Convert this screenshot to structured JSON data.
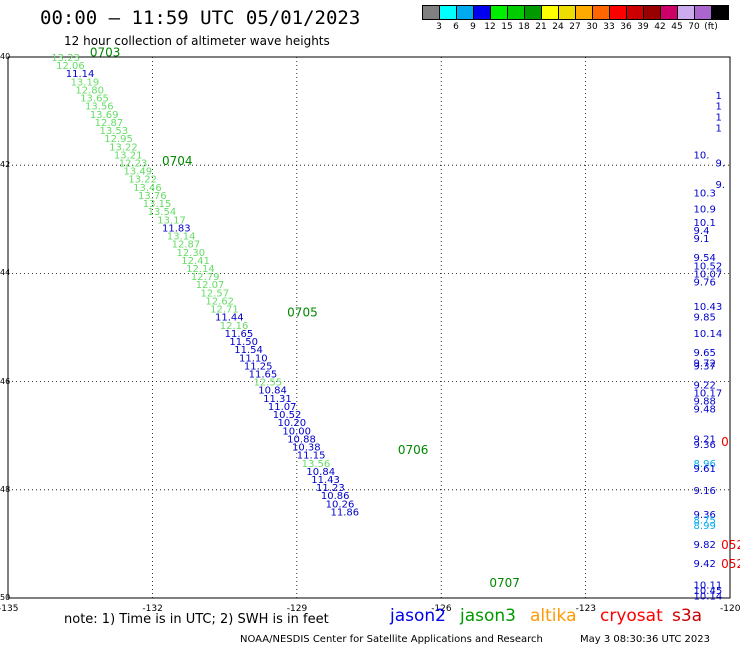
{
  "header": {
    "title": "00:00 – 11:59 UTC 05/01/2023",
    "subtitle": "12 hour collection of altimeter wave heights"
  },
  "colorbar": {
    "colors": [
      "#808080",
      "#00ffff",
      "#00aaee",
      "#0000ee",
      "#00ee00",
      "#00cc00",
      "#009900",
      "#ffff00",
      "#eedd00",
      "#ffaa00",
      "#ff6600",
      "#ff0000",
      "#cc0000",
      "#990000",
      "#cc0066",
      "#ccaaee",
      "#aa66cc",
      "#000000"
    ],
    "labels": [
      "3",
      "6",
      "9",
      "12",
      "15",
      "18",
      "21",
      "24",
      "27",
      "30",
      "33",
      "36",
      "39",
      "42",
      "45",
      "70",
      "(ft)"
    ]
  },
  "map": {
    "lon_labels": [
      "-135",
      "-132",
      "-129",
      "-126",
      "-123",
      "-120"
    ],
    "lat_labels": [
      "40",
      "42",
      "44",
      "46",
      "48",
      "50"
    ]
  },
  "chart_data": {
    "type": "scatter",
    "xlim": [
      -135,
      -120
    ],
    "ylim": [
      50,
      40
    ],
    "track_points": [
      {
        "x": -134.1,
        "y": 40.0,
        "label": "13.23",
        "sat": "jason3"
      },
      {
        "x": -134.0,
        "y": 40.15,
        "label": "12.06",
        "sat": "jason3"
      },
      {
        "x": -133.8,
        "y": 40.3,
        "label": "11.14",
        "sat": "jason2"
      },
      {
        "x": -133.7,
        "y": 40.45,
        "label": "13.19",
        "sat": "jason3"
      },
      {
        "x": -133.6,
        "y": 40.6,
        "label": "12.80",
        "sat": "jason3"
      },
      {
        "x": -133.5,
        "y": 40.75,
        "label": "13.65",
        "sat": "jason3"
      },
      {
        "x": -133.4,
        "y": 40.9,
        "label": "13.56",
        "sat": "jason3"
      },
      {
        "x": -133.3,
        "y": 41.05,
        "label": "13.69",
        "sat": "jason3"
      },
      {
        "x": -133.2,
        "y": 41.2,
        "label": "12.87",
        "sat": "jason3"
      },
      {
        "x": -133.1,
        "y": 41.35,
        "label": "13.53",
        "sat": "jason3"
      },
      {
        "x": -133.0,
        "y": 41.5,
        "label": "12.95",
        "sat": "jason3"
      },
      {
        "x": -132.9,
        "y": 41.65,
        "label": "13.22",
        "sat": "jason3"
      },
      {
        "x": -132.8,
        "y": 41.8,
        "label": "13.21",
        "sat": "jason3"
      },
      {
        "x": -132.7,
        "y": 41.95,
        "label": "12.23",
        "sat": "jason3"
      },
      {
        "x": -132.6,
        "y": 42.1,
        "label": "13.49",
        "sat": "jason3"
      },
      {
        "x": -132.5,
        "y": 42.25,
        "label": "13.22",
        "sat": "jason3"
      },
      {
        "x": -132.4,
        "y": 42.4,
        "label": "13.46",
        "sat": "jason3"
      },
      {
        "x": -132.3,
        "y": 42.55,
        "label": "13.76",
        "sat": "jason3"
      },
      {
        "x": -132.2,
        "y": 42.7,
        "label": "13.15",
        "sat": "jason3"
      },
      {
        "x": -132.1,
        "y": 42.85,
        "label": "13.54",
        "sat": "jason3"
      },
      {
        "x": -131.9,
        "y": 43.0,
        "label": "13.17",
        "sat": "jason3"
      },
      {
        "x": -131.8,
        "y": 43.15,
        "label": "11.83",
        "sat": "jason2"
      },
      {
        "x": -131.7,
        "y": 43.3,
        "label": "13.14",
        "sat": "jason3"
      },
      {
        "x": -131.6,
        "y": 43.45,
        "label": "12.87",
        "sat": "jason3"
      },
      {
        "x": -131.5,
        "y": 43.6,
        "label": "12.30",
        "sat": "jason3"
      },
      {
        "x": -131.4,
        "y": 43.75,
        "label": "12.41",
        "sat": "jason3"
      },
      {
        "x": -131.3,
        "y": 43.9,
        "label": "12.14",
        "sat": "jason3"
      },
      {
        "x": -131.2,
        "y": 44.05,
        "label": "12.79",
        "sat": "jason3"
      },
      {
        "x": -131.1,
        "y": 44.2,
        "label": "12.07",
        "sat": "jason3"
      },
      {
        "x": -131.0,
        "y": 44.35,
        "label": "12.57",
        "sat": "jason3"
      },
      {
        "x": -130.9,
        "y": 44.5,
        "label": "12.62",
        "sat": "jason3"
      },
      {
        "x": -130.8,
        "y": 44.65,
        "label": "12.71",
        "sat": "jason3"
      },
      {
        "x": -130.7,
        "y": 44.8,
        "label": "11.44",
        "sat": "jason2"
      },
      {
        "x": -130.6,
        "y": 44.95,
        "label": "12.16",
        "sat": "jason3"
      },
      {
        "x": -130.5,
        "y": 45.1,
        "label": "11.65",
        "sat": "jason2"
      },
      {
        "x": -130.4,
        "y": 45.25,
        "label": "11.50",
        "sat": "jason2"
      },
      {
        "x": -130.3,
        "y": 45.4,
        "label": "11.54",
        "sat": "jason2"
      },
      {
        "x": -130.2,
        "y": 45.55,
        "label": "11.10",
        "sat": "jason2"
      },
      {
        "x": -130.1,
        "y": 45.7,
        "label": "11.25",
        "sat": "jason2"
      },
      {
        "x": -130.0,
        "y": 45.85,
        "label": "11.65",
        "sat": "jason2"
      },
      {
        "x": -129.9,
        "y": 46.0,
        "label": "12.55",
        "sat": "jason3"
      },
      {
        "x": -129.8,
        "y": 46.15,
        "label": "10.84",
        "sat": "jason2"
      },
      {
        "x": -129.7,
        "y": 46.3,
        "label": "11.31",
        "sat": "jason2"
      },
      {
        "x": -129.6,
        "y": 46.45,
        "label": "11.07",
        "sat": "jason2"
      },
      {
        "x": -129.5,
        "y": 46.6,
        "label": "10.52",
        "sat": "jason2"
      },
      {
        "x": -129.4,
        "y": 46.75,
        "label": "10.20",
        "sat": "jason2"
      },
      {
        "x": -129.3,
        "y": 46.9,
        "label": "10.00",
        "sat": "jason2"
      },
      {
        "x": -129.2,
        "y": 47.05,
        "label": "10.88",
        "sat": "jason2"
      },
      {
        "x": -129.1,
        "y": 47.2,
        "label": "10.38",
        "sat": "jason2"
      },
      {
        "x": -129.0,
        "y": 47.35,
        "label": "11.15",
        "sat": "jason2"
      },
      {
        "x": -128.9,
        "y": 47.5,
        "label": "13.56",
        "sat": "jason3"
      },
      {
        "x": -128.8,
        "y": 47.65,
        "label": "10.84",
        "sat": "jason2"
      },
      {
        "x": -128.7,
        "y": 47.8,
        "label": "11.43",
        "sat": "jason2"
      },
      {
        "x": -128.6,
        "y": 47.95,
        "label": "11.23",
        "sat": "jason2"
      },
      {
        "x": -128.5,
        "y": 48.1,
        "label": "10.86",
        "sat": "jason2"
      },
      {
        "x": -128.4,
        "y": 48.25,
        "label": "10.26",
        "sat": "jason2"
      },
      {
        "x": -128.3,
        "y": 48.4,
        "label": "11.86",
        "sat": "jason2"
      }
    ],
    "time_labels": [
      {
        "x": -133.3,
        "y": 39.9,
        "label": "0703"
      },
      {
        "x": -131.8,
        "y": 41.9,
        "label": "0704"
      },
      {
        "x": -129.2,
        "y": 44.7,
        "label": "0705"
      },
      {
        "x": -126.9,
        "y": 47.25,
        "label": "0706"
      },
      {
        "x": -125.0,
        "y": 49.7,
        "label": "0707"
      }
    ],
    "edge_points": [
      {
        "x": -120.3,
        "y": 40.7,
        "label": "1"
      },
      {
        "x": -120.3,
        "y": 40.9,
        "label": "1"
      },
      {
        "x": -120.3,
        "y": 41.1,
        "label": "1"
      },
      {
        "x": -120.3,
        "y": 41.3,
        "label": "1"
      },
      {
        "x": -120.3,
        "y": 41.8,
        "label": "10."
      },
      {
        "x": -120.3,
        "y": 41.95,
        "label": "9."
      },
      {
        "x": -120.3,
        "y": 42.35,
        "label": "9."
      },
      {
        "x": -120.3,
        "y": 42.5,
        "label": "10.3"
      },
      {
        "x": -120.3,
        "y": 42.8,
        "label": "10.9"
      },
      {
        "x": -120.3,
        "y": 43.05,
        "label": "10.1"
      },
      {
        "x": -120.3,
        "y": 43.2,
        "label": "9.4"
      },
      {
        "x": -120.3,
        "y": 43.35,
        "label": "9.1"
      },
      {
        "x": -120.3,
        "y": 43.7,
        "label": "9.54"
      },
      {
        "x": -120.3,
        "y": 43.85,
        "label": "10.52"
      },
      {
        "x": -120.3,
        "y": 44.0,
        "label": "10.07"
      },
      {
        "x": -120.3,
        "y": 44.15,
        "label": "9.76"
      },
      {
        "x": -120.3,
        "y": 44.6,
        "label": "10.43"
      },
      {
        "x": -120.3,
        "y": 44.8,
        "label": "9.85"
      },
      {
        "x": -120.3,
        "y": 45.1,
        "label": "10.14"
      },
      {
        "x": -120.3,
        "y": 45.45,
        "label": "9.65"
      },
      {
        "x": -120.3,
        "y": 45.65,
        "label": "9.72"
      },
      {
        "x": -120.3,
        "y": 45.7,
        "label": "9.37"
      },
      {
        "x": -120.3,
        "y": 46.05,
        "label": "9.22"
      },
      {
        "x": -120.3,
        "y": 46.2,
        "label": "10.17"
      },
      {
        "x": -120.3,
        "y": 46.35,
        "label": "9.88"
      },
      {
        "x": -120.3,
        "y": 46.5,
        "label": "9.48"
      },
      {
        "x": -120.3,
        "y": 47.05,
        "label": "9.21"
      },
      {
        "x": -120.3,
        "y": 47.15,
        "label": "9.36"
      },
      {
        "x": -120.3,
        "y": 47.5,
        "label": "8.96"
      },
      {
        "x": -120.3,
        "y": 47.6,
        "label": "9.61"
      },
      {
        "x": -120.3,
        "y": 48.0,
        "label": "9.16"
      },
      {
        "x": -120.3,
        "y": 48.45,
        "label": "9.36"
      },
      {
        "x": -120.3,
        "y": 48.55,
        "label": "8.75"
      },
      {
        "x": -120.3,
        "y": 48.65,
        "label": "8.99"
      },
      {
        "x": -120.3,
        "y": 49.0,
        "label": "9.82"
      },
      {
        "x": -120.3,
        "y": 49.35,
        "label": "9.42"
      },
      {
        "x": -120.3,
        "y": 49.75,
        "label": "10.11"
      },
      {
        "x": -120.3,
        "y": 49.85,
        "label": "10.45"
      },
      {
        "x": -120.3,
        "y": 49.95,
        "label": "10.14"
      }
    ],
    "edge_red_labels": [
      {
        "x": -120.1,
        "y": 47.1,
        "label": "0"
      },
      {
        "x": -120.1,
        "y": 49.0,
        "label": "052"
      },
      {
        "x": -120.1,
        "y": 49.35,
        "label": "052"
      }
    ]
  },
  "note": "note: 1) Time is in UTC; 2) SWH is in feet",
  "legend": [
    {
      "label": "jason2",
      "color": "#0000ee"
    },
    {
      "label": "jason3",
      "color": "#009900"
    },
    {
      "label": "altika",
      "color": "#ff9900"
    },
    {
      "label": "cryosat",
      "color": "#ff0000"
    },
    {
      "label": "s3a",
      "color": "#cc0000"
    }
  ],
  "footer": {
    "credit": "NOAA/NESDIS Center for Satellite Applications and Research",
    "timestamp": "May  3 08:30:36 UTC 2023"
  },
  "sat_colors": {
    "jason2": "#0000cc",
    "jason3": "#66dd66",
    "time": "#008800",
    "edge_blue": "#0000cc",
    "edge_cyan": "#00aaee",
    "edge_red": "#ee0000"
  }
}
